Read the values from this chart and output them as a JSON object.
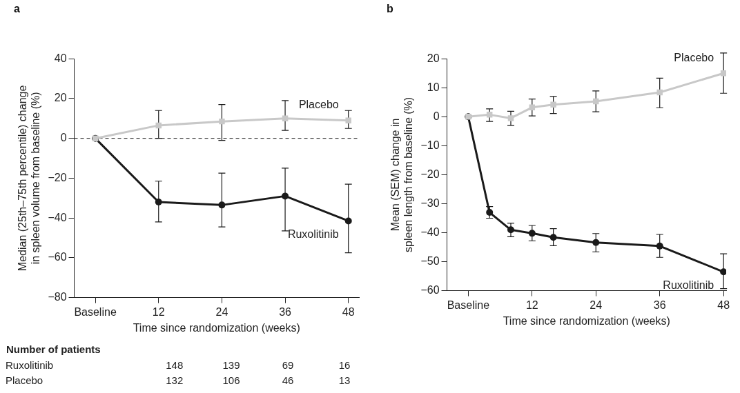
{
  "chart_data": [
    {
      "type": "line",
      "title": "a",
      "xlabel": "Time since randomization (weeks)",
      "ylabel": "Median (25th–75th percentile) change\nin spleen volume from baseline (%)",
      "x": [
        0,
        12,
        24,
        36,
        48
      ],
      "xlim": [
        -4,
        50
      ],
      "xticks": [
        {
          "value": 0,
          "label": "Baseline"
        },
        12,
        24,
        36,
        48
      ],
      "ylim": [
        -80,
        40
      ],
      "yticks": [
        -80,
        -60,
        -40,
        -20,
        0,
        20,
        40
      ],
      "grid": false,
      "legend": false,
      "series": [
        {
          "name": "Placebo",
          "color": "#c8c8c8",
          "marker": "square",
          "values": [
            0,
            6.5,
            8.5,
            10,
            9
          ],
          "errors": [
            null,
            [
              0,
              14
            ],
            [
              -1,
              17
            ],
            [
              4,
              19
            ],
            [
              5,
              14
            ]
          ]
        },
        {
          "name": "Ruxolitinib",
          "color": "#1a1a1a",
          "marker": "circle",
          "values": [
            0,
            -32,
            -33.5,
            -29,
            -41.5
          ],
          "errors": [
            null,
            [
              -42,
              -21.5
            ],
            [
              -44.5,
              -17.5
            ],
            [
              -46.5,
              -15
            ],
            [
              -57.5,
              -23
            ]
          ]
        }
      ],
      "ref_lines": [
        {
          "axis": "y",
          "value": 0,
          "color": "#1a1a1a",
          "line_style": "dashed"
        }
      ],
      "annotations": [
        "Number of patients",
        "Ruxolitinib",
        "148",
        "139",
        "69",
        "16",
        "Placebo",
        "132",
        "106",
        "46",
        "13"
      ]
    },
    {
      "type": "line",
      "title": "b",
      "xlabel": "Time since randomization (weeks)",
      "ylabel": "Mean (SEM) change in\nspleen length from baseline (%)",
      "x": [
        0,
        4,
        8,
        12,
        16,
        24,
        36,
        48
      ],
      "xlim": [
        -4,
        48.5
      ],
      "xticks": [
        {
          "value": 0,
          "label": "Baseline"
        },
        12,
        24,
        36,
        48
      ],
      "ylim": [
        -60,
        20
      ],
      "yticks": [
        -60,
        -50,
        -40,
        -30,
        -20,
        -10,
        0,
        10,
        20
      ],
      "grid": false,
      "legend": false,
      "series": [
        {
          "name": "Placebo",
          "color": "#c8c8c8",
          "marker": "square",
          "values": [
            0,
            0.7,
            -0.5,
            3.2,
            4.2,
            5.3,
            8.4,
            15
          ],
          "errors": [
            null,
            [
              -1.6,
              2.7
            ],
            [
              -3,
              1.9
            ],
            [
              0.3,
              6.1
            ],
            [
              1.1,
              7
            ],
            [
              1.7,
              8.9
            ],
            [
              3.1,
              13.3
            ],
            [
              8.1,
              22
            ]
          ]
        },
        {
          "name": "Ruxolitinib",
          "color": "#1a1a1a",
          "marker": "circle",
          "values": [
            0,
            -33,
            -39,
            -40.2,
            -41.6,
            -43.4,
            -44.6,
            -53.5
          ],
          "errors": [
            null,
            [
              -35,
              -31
            ],
            [
              -41.4,
              -36.7
            ],
            [
              -42.8,
              -37.5
            ],
            [
              -44.5,
              -38.6
            ],
            [
              -46.6,
              -40.3
            ],
            [
              -48.5,
              -40.6
            ],
            [
              -59.3,
              -47.3
            ]
          ]
        }
      ]
    }
  ]
}
